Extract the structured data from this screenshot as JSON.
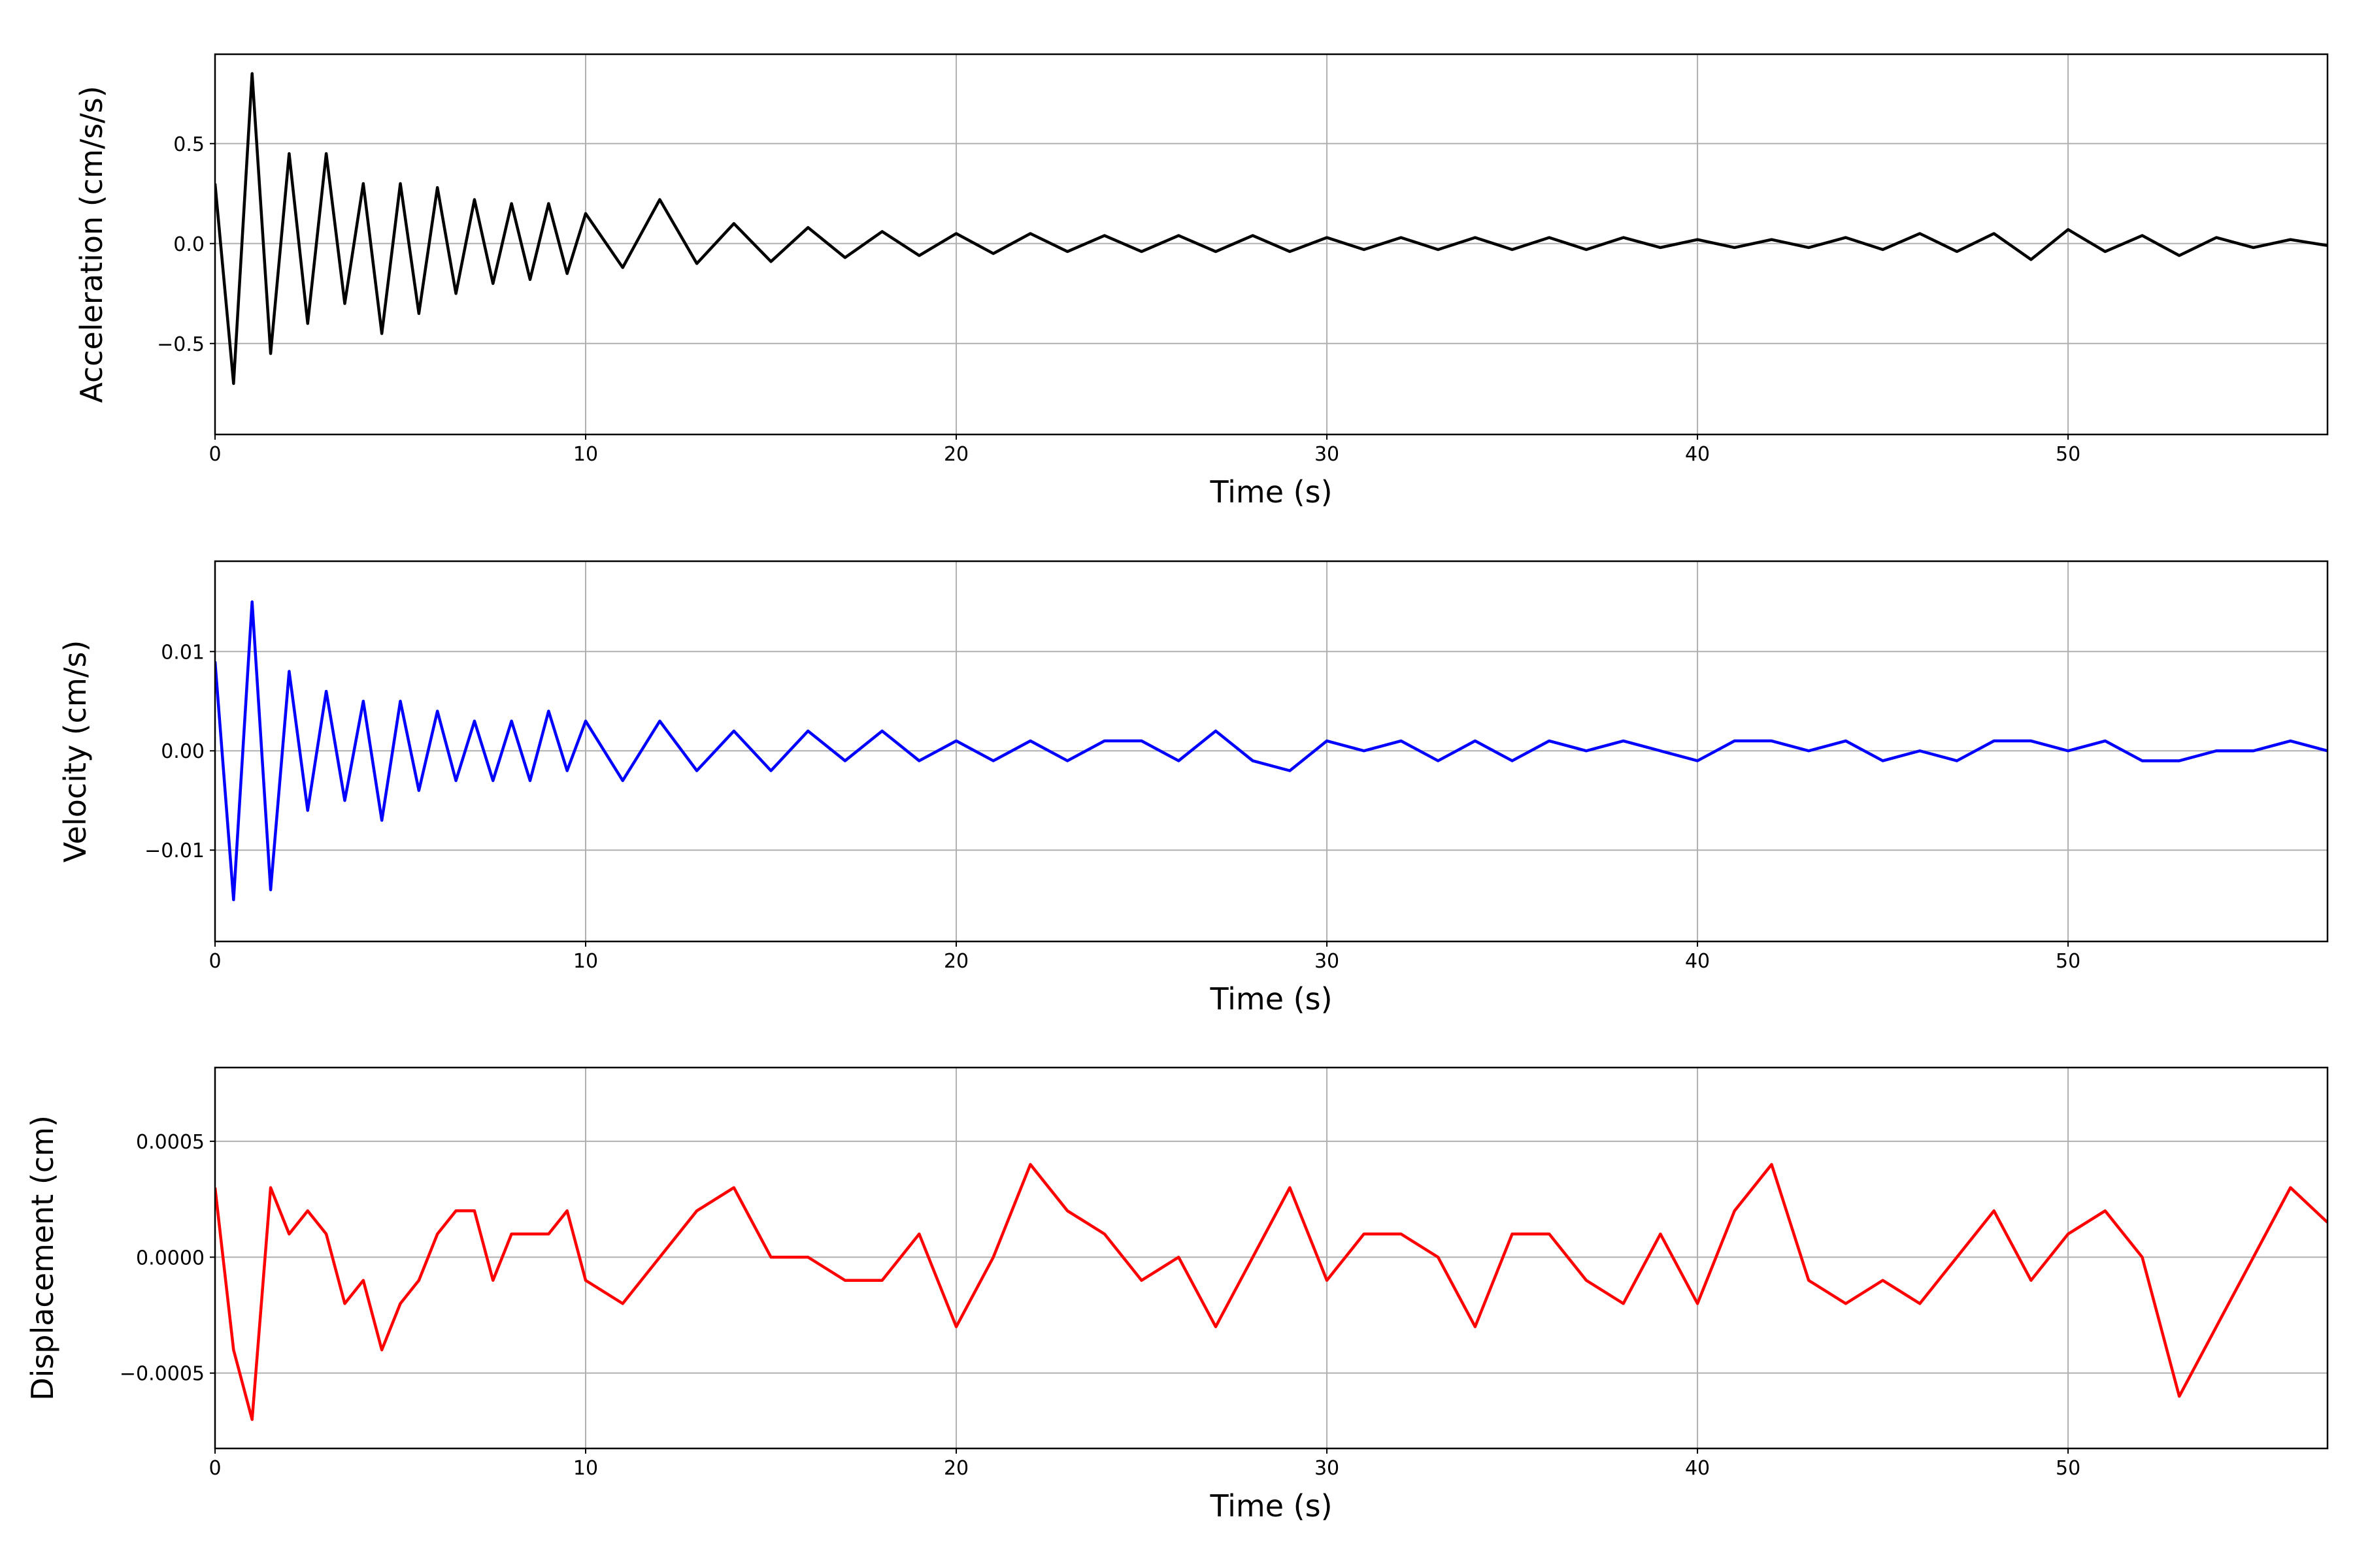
{
  "chart_data": [
    {
      "type": "line",
      "xlabel": "Time (s)",
      "ylabel": "Acceleration (cm/s/s)",
      "color": "#000000",
      "grid": true,
      "xlim": [
        0,
        57
      ],
      "xticks": [
        0,
        10,
        20,
        30,
        40,
        50
      ],
      "ylim": [
        -0.955,
        0.947
      ],
      "yticks": [
        {
          "value": -0.5,
          "label": "−0.5"
        },
        {
          "value": 0,
          "label": "0.0"
        },
        0.5
      ],
      "x": [
        0,
        0.5,
        1,
        1.5,
        2,
        2.5,
        3,
        3.5,
        4,
        4.5,
        5,
        5.5,
        6,
        6.5,
        7,
        7.5,
        8,
        8.5,
        9,
        9.5,
        10,
        11,
        12,
        13,
        14,
        15,
        16,
        17,
        18,
        19,
        20,
        21,
        22,
        23,
        24,
        25,
        26,
        27,
        28,
        29,
        30,
        31,
        32,
        33,
        34,
        35,
        36,
        37,
        38,
        39,
        40,
        41,
        42,
        43,
        44,
        45,
        46,
        47,
        48,
        49,
        50,
        51,
        52,
        53,
        54,
        55,
        56,
        57
      ],
      "values": [
        0.3,
        -0.7,
        0.85,
        -0.55,
        0.45,
        -0.4,
        0.45,
        -0.3,
        0.3,
        -0.45,
        0.3,
        -0.35,
        0.28,
        -0.25,
        0.22,
        -0.2,
        0.2,
        -0.18,
        0.2,
        -0.15,
        0.15,
        -0.12,
        0.22,
        -0.1,
        0.1,
        -0.09,
        0.08,
        -0.07,
        0.06,
        -0.06,
        0.05,
        -0.05,
        0.05,
        -0.04,
        0.04,
        -0.04,
        0.04,
        -0.04,
        0.04,
        -0.04,
        0.03,
        -0.03,
        0.03,
        -0.03,
        0.03,
        -0.03,
        0.03,
        -0.03,
        0.03,
        -0.02,
        0.02,
        -0.02,
        0.02,
        -0.02,
        0.03,
        -0.03,
        0.05,
        -0.04,
        0.05,
        -0.08,
        0.07,
        -0.04,
        0.04,
        -0.06,
        0.03,
        -0.02,
        0.02,
        -0.01
      ]
    },
    {
      "type": "line",
      "xlabel": "Time (s)",
      "ylabel": "Velocity (cm/s)",
      "color": "#0000ff",
      "grid": true,
      "xlim": [
        0,
        57
      ],
      "xticks": [
        0,
        10,
        20,
        30,
        40,
        50
      ],
      "ylim": [
        -0.0192,
        0.0191
      ],
      "yticks": [
        {
          "value": -0.01,
          "label": "−0.01"
        },
        {
          "value": 0,
          "label": "0.00"
        },
        0.01
      ],
      "x": [
        0,
        0.5,
        1,
        1.5,
        2,
        2.5,
        3,
        3.5,
        4,
        4.5,
        5,
        5.5,
        6,
        6.5,
        7,
        7.5,
        8,
        8.5,
        9,
        9.5,
        10,
        11,
        12,
        13,
        14,
        15,
        16,
        17,
        18,
        19,
        20,
        21,
        22,
        23,
        24,
        25,
        26,
        27,
        28,
        29,
        30,
        31,
        32,
        33,
        34,
        35,
        36,
        37,
        38,
        39,
        40,
        41,
        42,
        43,
        44,
        45,
        46,
        47,
        48,
        49,
        50,
        51,
        52,
        53,
        54,
        55,
        56,
        57
      ],
      "values": [
        0.009,
        -0.015,
        0.015,
        -0.014,
        0.008,
        -0.006,
        0.006,
        -0.005,
        0.005,
        -0.007,
        0.005,
        -0.004,
        0.004,
        -0.003,
        0.003,
        -0.003,
        0.003,
        -0.003,
        0.004,
        -0.002,
        0.003,
        -0.003,
        0.003,
        -0.002,
        0.002,
        -0.002,
        0.002,
        -0.001,
        0.002,
        -0.001,
        0.001,
        -0.001,
        0.001,
        -0.001,
        0.001,
        0.001,
        -0.001,
        0.002,
        -0.001,
        -0.002,
        0.001,
        0,
        0.001,
        -0.001,
        0.001,
        -0.001,
        0.001,
        0,
        0.001,
        0,
        -0.001,
        0.001,
        0.001,
        0,
        0.001,
        -0.001,
        0,
        -0.001,
        0.001,
        0.001,
        0,
        0.001,
        -0.001,
        -0.001,
        0,
        0,
        0.001,
        0
      ]
    },
    {
      "type": "line",
      "xlabel": "Time (s)",
      "ylabel": "Displacement (cm)",
      "color": "#ff0000",
      "grid": true,
      "xlim": [
        0,
        57
      ],
      "xticks": [
        0,
        10,
        20,
        30,
        40,
        50
      ],
      "ylim": [
        -0.000825,
        0.000818
      ],
      "yticks": [
        {
          "value": -0.0005,
          "label": "−0.0005"
        },
        {
          "value": 0,
          "label": "0.0000"
        },
        0.0005
      ],
      "x": [
        0,
        0.5,
        1,
        1.5,
        2,
        2.5,
        3,
        3.5,
        4,
        4.5,
        5,
        5.5,
        6,
        6.5,
        7,
        7.5,
        8,
        8.5,
        9,
        9.5,
        10,
        11,
        12,
        13,
        14,
        15,
        16,
        17,
        18,
        19,
        20,
        21,
        22,
        23,
        24,
        25,
        26,
        27,
        28,
        29,
        30,
        31,
        32,
        33,
        34,
        35,
        36,
        37,
        38,
        39,
        40,
        41,
        42,
        43,
        44,
        45,
        46,
        47,
        48,
        49,
        50,
        51,
        52,
        53,
        54,
        55,
        56,
        57
      ],
      "values": [
        0.0003,
        -0.0004,
        -0.0007,
        0.0003,
        0.0001,
        0.0002,
        0.0001,
        -0.0002,
        -0.0001,
        -0.0004,
        -0.0002,
        -0.0001,
        0.0001,
        0.0002,
        0.0002,
        -0.0001,
        0.0001,
        0.0001,
        0.0001,
        0.0002,
        -0.0001,
        -0.0002,
        0,
        0.0002,
        0.0003,
        0,
        0,
        -0.0001,
        -0.0001,
        0.0001,
        -0.0003,
        0,
        0.0004,
        0.0002,
        0.0001,
        -0.0001,
        0,
        -0.0003,
        0,
        0.0003,
        -0.0001,
        0.0001,
        0.0001,
        0,
        -0.0003,
        0.0001,
        0.0001,
        -0.0001,
        -0.0002,
        0.0001,
        -0.0002,
        0.0002,
        0.0004,
        -0.0001,
        -0.0002,
        -0.0001,
        -0.0002,
        0,
        0.0002,
        -0.0001,
        0.0001,
        0.0002,
        0,
        -0.0006,
        -0.0003,
        0,
        0.0003,
        0.00015
      ]
    }
  ]
}
